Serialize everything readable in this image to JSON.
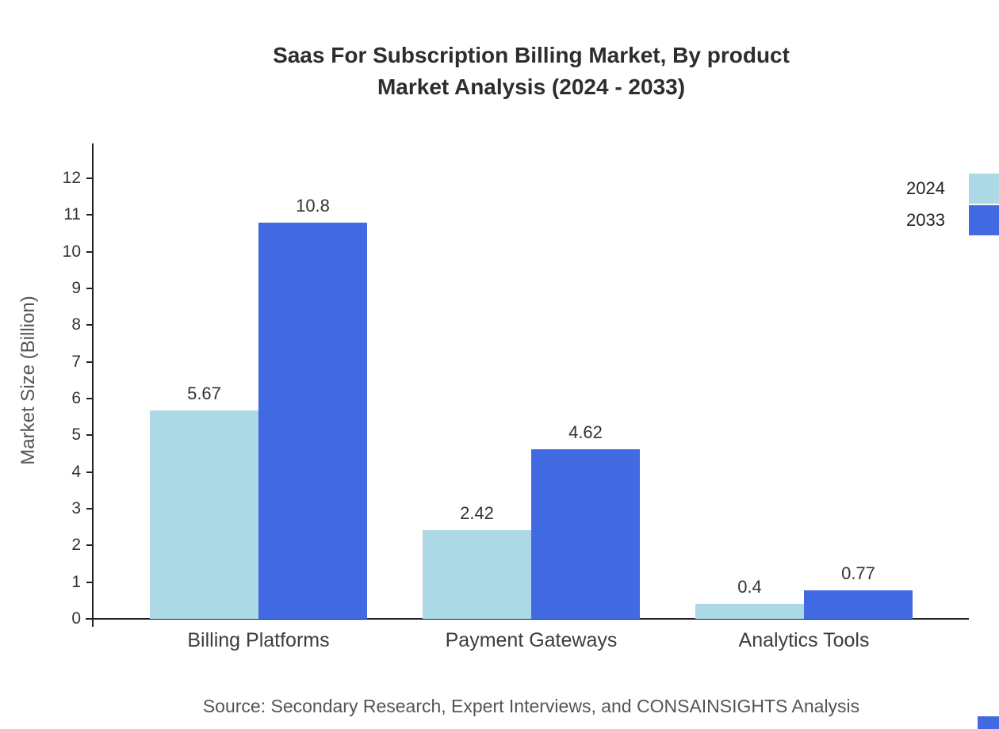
{
  "title": {
    "line1": "Saas For Subscription Billing Market, By product",
    "line2": "Market Analysis (2024 - 2033)"
  },
  "source": "Source: Secondary Research, Expert Interviews, and CONSAINSIGHTS Analysis",
  "colors": {
    "series_2024": "#add8e6",
    "series_2033": "#4169e1",
    "axis": "#222222"
  },
  "chart_data": {
    "type": "bar",
    "title": "Saas For Subscription Billing Market, By product Market Analysis (2024 - 2033)",
    "categories": [
      "Billing Platforms",
      "Payment Gateways",
      "Analytics Tools"
    ],
    "series": [
      {
        "name": "2024",
        "color": "#add8e6",
        "values": [
          5.67,
          2.42,
          0.4
        ]
      },
      {
        "name": "2033",
        "color": "#4169e1",
        "values": [
          10.8,
          4.62,
          0.77
        ]
      }
    ],
    "xlabel": "",
    "ylabel": "Market Size (Billion)",
    "ylim": [
      0,
      12
    ],
    "yticks": [
      0,
      1,
      2,
      3,
      4,
      5,
      6,
      7,
      8,
      9,
      10,
      11,
      12
    ],
    "grid": false,
    "legend_position": "top-right"
  }
}
